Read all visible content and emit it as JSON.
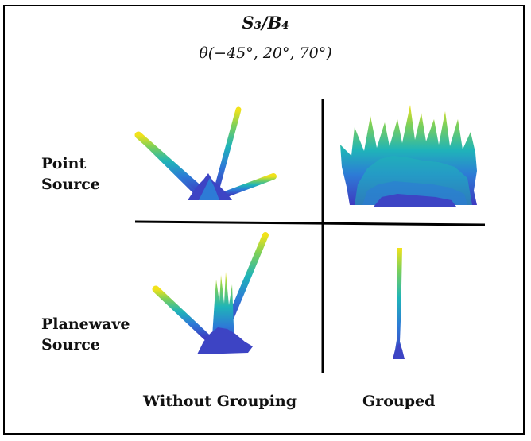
{
  "title": {
    "main": "S₃/B₄",
    "sub": "θ(−45°, 20°, 70°)"
  },
  "rows": [
    {
      "line1": "Point",
      "line2": "Source"
    },
    {
      "line1": "Planewave",
      "line2": "Source"
    }
  ],
  "columns": [
    "Without Grouping",
    "Grouped"
  ],
  "colormap": [
    "#3e3ac0",
    "#2d7bd6",
    "#1fb4b8",
    "#7cd05a",
    "#f2e21a"
  ]
}
